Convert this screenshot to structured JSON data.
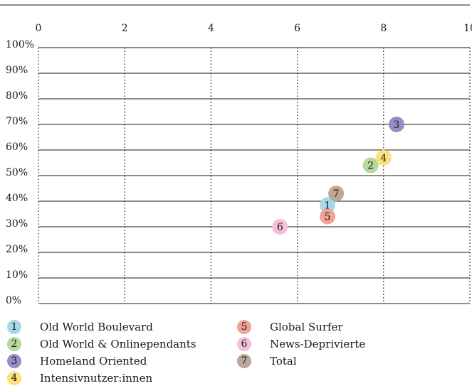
{
  "chart_data": {
    "type": "scatter",
    "title": "",
    "xlabel": "",
    "ylabel": "",
    "xlim": [
      0,
      10
    ],
    "ylim": [
      0,
      100
    ],
    "x_ticks": [
      "0",
      "2",
      "4",
      "6",
      "8",
      "10"
    ],
    "y_ticks": [
      "0%",
      "10%",
      "20%",
      "30%",
      "40%",
      "50%",
      "60%",
      "70%",
      "80%",
      "90%",
      "100%"
    ],
    "grid": true,
    "legend_position": "bottom",
    "points": [
      {
        "id": "1",
        "name": "Old World Boulevard",
        "x": 6.7,
        "y": 38.5,
        "color": "#a7d8ea"
      },
      {
        "id": "2",
        "name": "Old World & Onlinependants",
        "x": 7.7,
        "y": 54,
        "color": "#b4d99a"
      },
      {
        "id": "3",
        "name": "Homeland Oriented",
        "x": 8.3,
        "y": 70,
        "color": "#9b8cc4"
      },
      {
        "id": "4",
        "name": "Intensivnutzer:innen",
        "x": 8.0,
        "y": 57,
        "color": "#fbe37a"
      },
      {
        "id": "5",
        "name": "Global Surfer",
        "x": 6.7,
        "y": 34,
        "color": "#f2a397"
      },
      {
        "id": "6",
        "name": "News-Deprivierte",
        "x": 5.6,
        "y": 30,
        "color": "#f6c0da"
      },
      {
        "id": "7",
        "name": "Total",
        "x": 6.9,
        "y": 43,
        "color": "#bda89a"
      }
    ]
  }
}
